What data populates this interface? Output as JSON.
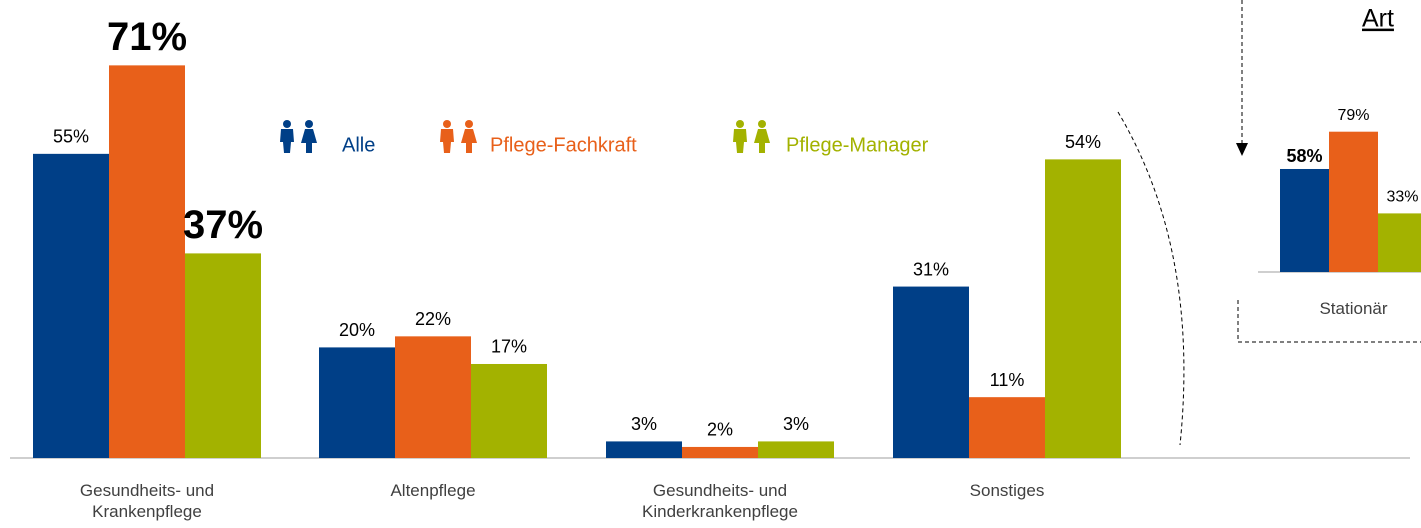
{
  "chart_data": [
    {
      "type": "bar",
      "categories": [
        "Gesundheits- und Krankenpflege",
        "Altenpflege",
        "Gesundheits- und Kinderkrankenpflege",
        "Sonstiges"
      ],
      "series": [
        {
          "name": "Alle",
          "color": "#003f87",
          "values": [
            55,
            20,
            3,
            31
          ],
          "value_labels": [
            "55%",
            "20%",
            "3%",
            "31%"
          ],
          "emphasis": [
            false,
            false,
            false,
            false
          ]
        },
        {
          "name": "Pflege-Fachkraft",
          "color": "#e8601a",
          "values": [
            71,
            22,
            2,
            11
          ],
          "value_labels": [
            "71%",
            "22%",
            "2%",
            "11%"
          ],
          "emphasis": [
            true,
            false,
            false,
            false
          ]
        },
        {
          "name": "Pflege-Manager",
          "color": "#a3b200",
          "values": [
            37,
            17,
            3,
            54
          ],
          "value_labels": [
            "37%",
            "17%",
            "3%",
            "54%"
          ],
          "emphasis": [
            true,
            false,
            false,
            false
          ]
        }
      ]
    },
    {
      "type": "bar",
      "title": "Art",
      "categories": [
        "Stationär"
      ],
      "series": [
        {
          "name": "Alle",
          "color": "#003f87",
          "values": [
            58
          ],
          "value_labels": [
            "58%"
          ],
          "emphasis": [
            true
          ]
        },
        {
          "name": "Pflege-Fachkraft",
          "color": "#e8601a",
          "values": [
            79
          ],
          "value_labels": [
            "79%"
          ],
          "emphasis": [
            false
          ]
        },
        {
          "name": "Pflege-Manager",
          "color": "#a3b200",
          "values": [
            33
          ],
          "value_labels": [
            "33%"
          ],
          "emphasis": [
            false
          ]
        }
      ]
    }
  ]
}
